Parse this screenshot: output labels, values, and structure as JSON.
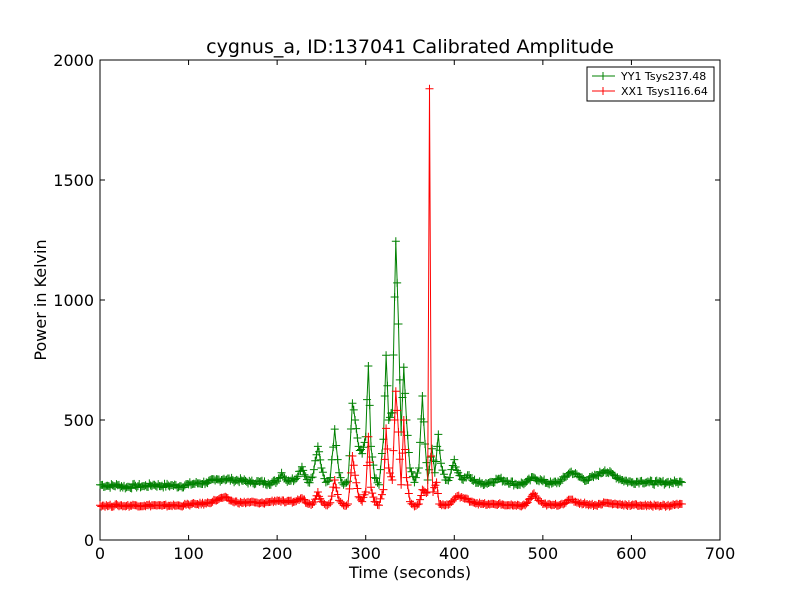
{
  "chart_data": {
    "type": "line",
    "title": "cygnus_a, ID:137041 Calibrated Amplitude",
    "xlabel": "Time (seconds)",
    "ylabel": "Power in Kelvin",
    "xlim": [
      0,
      700
    ],
    "ylim": [
      0,
      2000
    ],
    "x_ticks": [
      "0",
      "100",
      "200",
      "300",
      "400",
      "500",
      "600",
      "700"
    ],
    "y_ticks": [
      "0",
      "500",
      "1000",
      "1500",
      "2000"
    ],
    "grid": false,
    "legend_position": "top-right",
    "marker": "plus",
    "series": [
      {
        "name": "YY1 Tsys237.48",
        "color": "#008000",
        "points": [
          [
            0,
            230
          ],
          [
            10,
            225
          ],
          [
            20,
            228
          ],
          [
            30,
            220
          ],
          [
            40,
            226
          ],
          [
            50,
            224
          ],
          [
            60,
            230
          ],
          [
            70,
            226
          ],
          [
            80,
            228
          ],
          [
            90,
            224
          ],
          [
            100,
            232
          ],
          [
            110,
            236
          ],
          [
            120,
            240
          ],
          [
            130,
            248
          ],
          [
            140,
            255
          ],
          [
            150,
            250
          ],
          [
            160,
            248
          ],
          [
            170,
            240
          ],
          [
            180,
            242
          ],
          [
            190,
            236
          ],
          [
            200,
            245
          ],
          [
            205,
            280
          ],
          [
            210,
            250
          ],
          [
            220,
            252
          ],
          [
            228,
            305
          ],
          [
            235,
            240
          ],
          [
            240,
            262
          ],
          [
            246,
            390
          ],
          [
            250,
            300
          ],
          [
            255,
            240
          ],
          [
            260,
            260
          ],
          [
            265,
            462
          ],
          [
            270,
            280
          ],
          [
            275,
            230
          ],
          [
            280,
            245
          ],
          [
            285,
            570
          ],
          [
            288,
            500
          ],
          [
            292,
            390
          ],
          [
            296,
            360
          ],
          [
            300,
            430
          ],
          [
            303,
            725
          ],
          [
            306,
            390
          ],
          [
            310,
            260
          ],
          [
            315,
            230
          ],
          [
            320,
            420
          ],
          [
            323,
            770
          ],
          [
            326,
            500
          ],
          [
            330,
            530
          ],
          [
            334,
            1245
          ],
          [
            337,
            900
          ],
          [
            340,
            450
          ],
          [
            343,
            720
          ],
          [
            346,
            500
          ],
          [
            350,
            300
          ],
          [
            355,
            240
          ],
          [
            360,
            300
          ],
          [
            364,
            600
          ],
          [
            367,
            400
          ],
          [
            370,
            250
          ],
          [
            375,
            380
          ],
          [
            378,
            280
          ],
          [
            382,
            440
          ],
          [
            385,
            320
          ],
          [
            390,
            250
          ],
          [
            395,
            260
          ],
          [
            400,
            335
          ],
          [
            403,
            290
          ],
          [
            410,
            250
          ],
          [
            415,
            270
          ],
          [
            420,
            250
          ],
          [
            430,
            235
          ],
          [
            440,
            240
          ],
          [
            450,
            255
          ],
          [
            460,
            245
          ],
          [
            470,
            232
          ],
          [
            480,
            238
          ],
          [
            490,
            260
          ],
          [
            500,
            245
          ],
          [
            510,
            235
          ],
          [
            520,
            245
          ],
          [
            532,
            285
          ],
          [
            540,
            265
          ],
          [
            550,
            250
          ],
          [
            560,
            268
          ],
          [
            570,
            290
          ],
          [
            580,
            270
          ],
          [
            590,
            250
          ],
          [
            600,
            240
          ],
          [
            610,
            245
          ],
          [
            620,
            240
          ],
          [
            630,
            238
          ],
          [
            640,
            240
          ],
          [
            650,
            240
          ],
          [
            657,
            240
          ]
        ]
      },
      {
        "name": "XX1 Tsys116.64",
        "color": "#ff0000",
        "points": [
          [
            0,
            145
          ],
          [
            10,
            142
          ],
          [
            20,
            145
          ],
          [
            30,
            142
          ],
          [
            40,
            145
          ],
          [
            50,
            143
          ],
          [
            60,
            145
          ],
          [
            70,
            142
          ],
          [
            80,
            144
          ],
          [
            90,
            143
          ],
          [
            100,
            148
          ],
          [
            110,
            150
          ],
          [
            120,
            152
          ],
          [
            130,
            165
          ],
          [
            140,
            178
          ],
          [
            150,
            160
          ],
          [
            160,
            155
          ],
          [
            170,
            158
          ],
          [
            180,
            152
          ],
          [
            190,
            158
          ],
          [
            200,
            165
          ],
          [
            210,
            158
          ],
          [
            220,
            160
          ],
          [
            228,
            175
          ],
          [
            235,
            150
          ],
          [
            240,
            150
          ],
          [
            246,
            200
          ],
          [
            250,
            160
          ],
          [
            255,
            145
          ],
          [
            260,
            155
          ],
          [
            265,
            250
          ],
          [
            270,
            165
          ],
          [
            275,
            145
          ],
          [
            280,
            150
          ],
          [
            285,
            350
          ],
          [
            288,
            270
          ],
          [
            292,
            180
          ],
          [
            296,
            160
          ],
          [
            300,
            200
          ],
          [
            303,
            430
          ],
          [
            306,
            220
          ],
          [
            310,
            160
          ],
          [
            315,
            145
          ],
          [
            320,
            210
          ],
          [
            323,
            465
          ],
          [
            326,
            300
          ],
          [
            330,
            250
          ],
          [
            334,
            620
          ],
          [
            337,
            450
          ],
          [
            340,
            230
          ],
          [
            343,
            500
          ],
          [
            346,
            260
          ],
          [
            350,
            160
          ],
          [
            355,
            140
          ],
          [
            360,
            150
          ],
          [
            364,
            210
          ],
          [
            367,
            200
          ],
          [
            370,
            200
          ],
          [
            372,
            1880
          ],
          [
            374,
            350
          ],
          [
            376,
            200
          ],
          [
            380,
            240
          ],
          [
            383,
            150
          ],
          [
            390,
            145
          ],
          [
            395,
            150
          ],
          [
            400,
            170
          ],
          [
            405,
            185
          ],
          [
            410,
            175
          ],
          [
            420,
            160
          ],
          [
            430,
            150
          ],
          [
            440,
            148
          ],
          [
            450,
            150
          ],
          [
            460,
            145
          ],
          [
            470,
            142
          ],
          [
            480,
            145
          ],
          [
            490,
            195
          ],
          [
            495,
            165
          ],
          [
            500,
            150
          ],
          [
            510,
            145
          ],
          [
            520,
            148
          ],
          [
            532,
            168
          ],
          [
            540,
            155
          ],
          [
            550,
            150
          ],
          [
            560,
            145
          ],
          [
            570,
            155
          ],
          [
            580,
            150
          ],
          [
            590,
            148
          ],
          [
            600,
            145
          ],
          [
            610,
            145
          ],
          [
            620,
            142
          ],
          [
            630,
            145
          ],
          [
            640,
            142
          ],
          [
            650,
            148
          ],
          [
            657,
            150
          ]
        ]
      }
    ]
  }
}
